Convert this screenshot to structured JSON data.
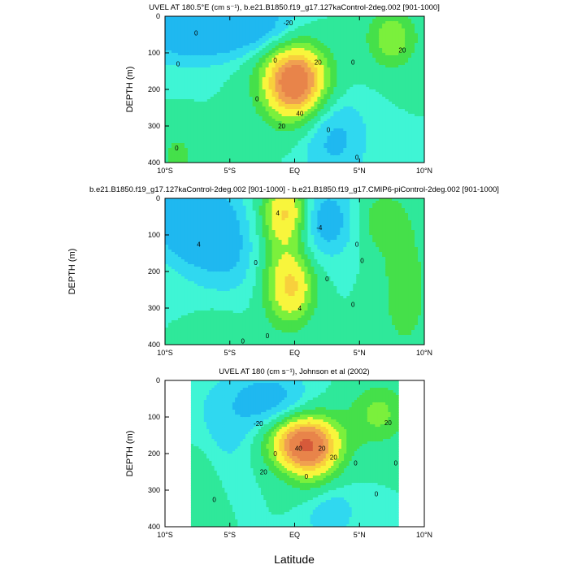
{
  "figure": {
    "shared_xlabel": "Latitude",
    "outer_ylabel": "DEPTH (m)"
  },
  "chart_data": [
    {
      "type": "heatmap",
      "title": "UVEL AT 180.5°E (cm s⁻¹), b.e21.B1850.f19_g17.127kaControl-2deg.002 [901-1000]",
      "xlabel": "",
      "ylabel": "DEPTH (m)",
      "x_ticks": [
        "10°S",
        "5°S",
        "EQ",
        "5°N",
        "10°N"
      ],
      "y_ticks": [
        "0",
        "100",
        "200",
        "300",
        "400"
      ],
      "xlim": [
        -10,
        10
      ],
      "ylim": [
        400,
        0
      ],
      "features": [
        {
          "lat": 0,
          "depth": 180,
          "value": 80,
          "sx": 1.8,
          "sy": 75
        },
        {
          "lat": 7.5,
          "depth": 60,
          "value": 30,
          "sx": 1.4,
          "sy": 60
        },
        {
          "lat": -8,
          "depth": 40,
          "value": -40,
          "sx": 2.5,
          "sy": 55
        },
        {
          "lat": -3.5,
          "depth": 20,
          "value": -35,
          "sx": 2.5,
          "sy": 50
        },
        {
          "lat": 3,
          "depth": 330,
          "value": -25,
          "sx": 1.7,
          "sy": 80
        },
        {
          "lat": -9,
          "depth": 380,
          "value": 15,
          "sx": 1.3,
          "sy": 50
        }
      ],
      "contour_labels": [
        {
          "lat": -7.6,
          "depth": 45,
          "text": "0"
        },
        {
          "lat": -0.5,
          "depth": 18,
          "text": "-20"
        },
        {
          "lat": -1.5,
          "depth": 120,
          "text": "0"
        },
        {
          "lat": 1.8,
          "depth": 125,
          "text": "20"
        },
        {
          "lat": 8.3,
          "depth": 92,
          "text": "20"
        },
        {
          "lat": -2.9,
          "depth": 225,
          "text": "0"
        },
        {
          "lat": 4.5,
          "depth": 125,
          "text": "0"
        },
        {
          "lat": 0.4,
          "depth": 265,
          "text": "40"
        },
        {
          "lat": -1.0,
          "depth": 300,
          "text": "20"
        },
        {
          "lat": 2.6,
          "depth": 310,
          "text": "0"
        },
        {
          "lat": -9.1,
          "depth": 360,
          "text": "0"
        },
        {
          "lat": -9.0,
          "depth": 130,
          "text": "0"
        },
        {
          "lat": 4.8,
          "depth": 385,
          "text": "0"
        }
      ]
    },
    {
      "type": "heatmap",
      "title": "b.e21.B1850.f19_g17.127kaControl-2deg.002 [901-1000] - b.e21.B1850.f19_g17.CMIP6-piControl-2deg.002 [901-1000]",
      "xlabel": "",
      "ylabel": "",
      "x_ticks": [
        "10°S",
        "5°S",
        "EQ",
        "5°N",
        "10°N"
      ],
      "y_ticks": [
        "0",
        "100",
        "200",
        "300",
        "400"
      ],
      "xlim": [
        -10,
        10
      ],
      "ylim": [
        400,
        0
      ],
      "features": [
        {
          "lat": -8,
          "depth": 50,
          "value": -8,
          "sx": 2.2,
          "sy": 80
        },
        {
          "lat": -5,
          "depth": 150,
          "value": -4,
          "sx": 2.5,
          "sy": 90
        },
        {
          "lat": 2.5,
          "depth": 60,
          "value": -6,
          "sx": 1.6,
          "sy": 70
        },
        {
          "lat": -0.6,
          "depth": 40,
          "value": 9,
          "sx": 1.2,
          "sy": 60
        },
        {
          "lat": -0.2,
          "depth": 240,
          "value": 9,
          "sx": 1.2,
          "sy": 70
        },
        {
          "lat": -1.8,
          "depth": 160,
          "value": 3,
          "sx": 1.3,
          "sy": 120
        },
        {
          "lat": 8.5,
          "depth": 250,
          "value": 3,
          "sx": 1.5,
          "sy": 140
        },
        {
          "lat": 6.5,
          "depth": 60,
          "value": 3,
          "sx": 1.5,
          "sy": 60
        },
        {
          "lat": -6,
          "depth": 380,
          "value": 2,
          "sx": 1.5,
          "sy": 60
        }
      ],
      "contour_labels": [
        {
          "lat": -1.3,
          "depth": 40,
          "text": "4"
        },
        {
          "lat": 1.9,
          "depth": 80,
          "text": "-4"
        },
        {
          "lat": -7.4,
          "depth": 125,
          "text": "4"
        },
        {
          "lat": -3.0,
          "depth": 175,
          "text": "0"
        },
        {
          "lat": 4.8,
          "depth": 125,
          "text": "0"
        },
        {
          "lat": 5.2,
          "depth": 170,
          "text": "0"
        },
        {
          "lat": 0.4,
          "depth": 300,
          "text": "4"
        },
        {
          "lat": 2.5,
          "depth": 220,
          "text": "0"
        },
        {
          "lat": 4.5,
          "depth": 290,
          "text": "0"
        },
        {
          "lat": -4.0,
          "depth": 390,
          "text": "0"
        },
        {
          "lat": -2.1,
          "depth": 375,
          "text": "0"
        }
      ]
    },
    {
      "type": "heatmap",
      "title": "UVEL AT 180 (cm s⁻¹), Johnson et al (2002)",
      "xlabel": "",
      "ylabel": "DEPTH (m)",
      "x_ticks": [
        "10°S",
        "5°S",
        "EQ",
        "5°N",
        "10°N"
      ],
      "y_ticks": [
        "0",
        "100",
        "200",
        "300",
        "400"
      ],
      "xlim": [
        -10,
        10
      ],
      "ylim": [
        400,
        0
      ],
      "data_extent_lat": [
        -8,
        8
      ],
      "features": [
        {
          "lat": 0.5,
          "depth": 170,
          "value": 70,
          "sx": 2.0,
          "sy": 55
        },
        {
          "lat": 1.6,
          "depth": 230,
          "value": 25,
          "sx": 1.5,
          "sy": 80
        },
        {
          "lat": 6.5,
          "depth": 90,
          "value": 25,
          "sx": 1.6,
          "sy": 60
        },
        {
          "lat": -1.8,
          "depth": 50,
          "value": -25,
          "sx": 2.0,
          "sy": 50
        },
        {
          "lat": -5,
          "depth": 120,
          "value": -15,
          "sx": 3.0,
          "sy": 90
        },
        {
          "lat": 2.5,
          "depth": 350,
          "value": -20,
          "sx": 1.5,
          "sy": 60
        },
        {
          "lat": -7.5,
          "depth": 250,
          "value": 10,
          "sx": 1.2,
          "sy": 120
        }
      ],
      "contour_labels": [
        {
          "lat": -2.8,
          "depth": 118,
          "text": "-20"
        },
        {
          "lat": 7.2,
          "depth": 115,
          "text": "20"
        },
        {
          "lat": -1.5,
          "depth": 200,
          "text": "0"
        },
        {
          "lat": 0.3,
          "depth": 185,
          "text": "40"
        },
        {
          "lat": 2.1,
          "depth": 185,
          "text": "20"
        },
        {
          "lat": 3.0,
          "depth": 210,
          "text": "20"
        },
        {
          "lat": -2.4,
          "depth": 250,
          "text": "20"
        },
        {
          "lat": 4.7,
          "depth": 225,
          "text": "0"
        },
        {
          "lat": 7.8,
          "depth": 225,
          "text": "0"
        },
        {
          "lat": 0.9,
          "depth": 262,
          "text": "0"
        },
        {
          "lat": 6.3,
          "depth": 310,
          "text": "0"
        },
        {
          "lat": -6.2,
          "depth": 325,
          "text": "0"
        }
      ]
    }
  ]
}
